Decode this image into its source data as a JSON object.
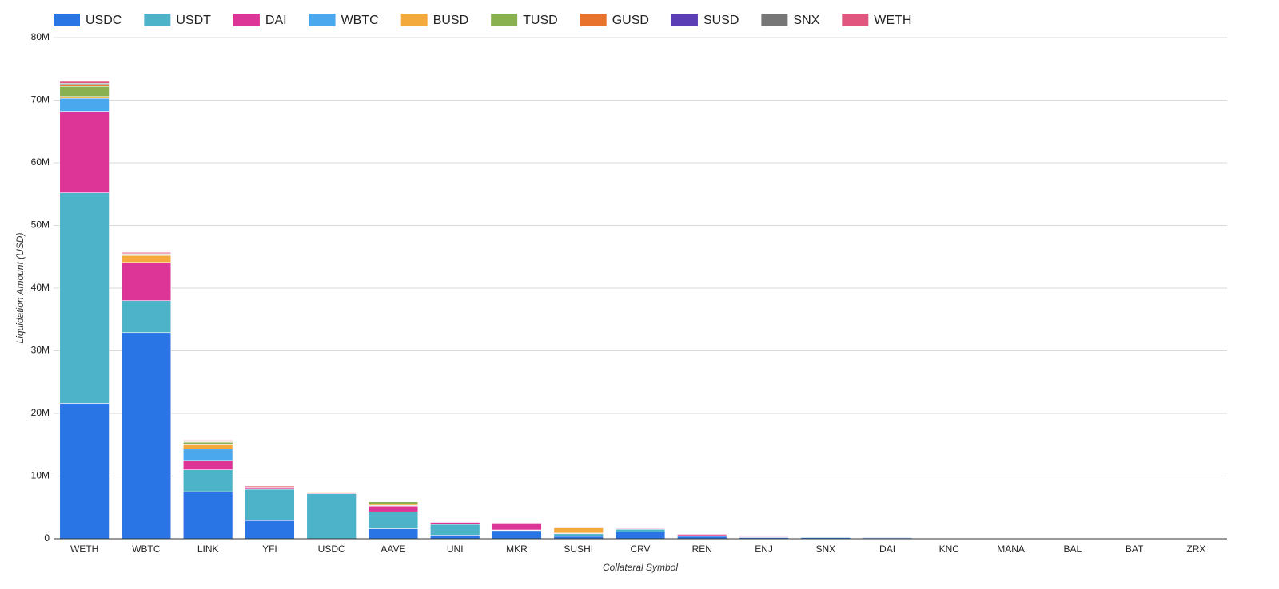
{
  "chart_data": {
    "type": "stacked_bar",
    "x_label": "Collateral Symbol",
    "y_label": "Liquidation Amount (USD)",
    "categories": [
      "WETH",
      "WBTC",
      "LINK",
      "YFI",
      "USDC",
      "AAVE",
      "UNI",
      "MKR",
      "SUSHI",
      "CRV",
      "REN",
      "ENJ",
      "SNX",
      "DAI",
      "KNC",
      "MANA",
      "BAL",
      "BAT",
      "ZRX"
    ],
    "ylim": [
      0,
      80000000
    ],
    "yticks": [
      0,
      {
        "value": 10000000,
        "label": "10M"
      },
      {
        "value": 20000000,
        "label": "20M"
      },
      {
        "value": 30000000,
        "label": "30M"
      },
      {
        "value": 40000000,
        "label": "40M"
      },
      {
        "value": 50000000,
        "label": "50M"
      },
      {
        "value": 60000000,
        "label": "60M"
      },
      {
        "value": 70000000,
        "label": "70M"
      },
      {
        "value": 80000000,
        "label": "80M"
      }
    ],
    "grid": true,
    "legend": "top",
    "series": [
      {
        "name": "USDC",
        "color": "#2a75e6",
        "values": [
          21600000,
          32900000,
          7500000,
          2900000,
          0,
          1600000,
          600000,
          1300000,
          400000,
          1100000,
          400000,
          200000,
          200000,
          150000,
          50000,
          30000,
          20000,
          10000,
          10000
        ]
      },
      {
        "name": "USDT",
        "color": "#4db3c8",
        "values": [
          33600000,
          5100000,
          3500000,
          5000000,
          7200000,
          2700000,
          1700000,
          100000,
          400000,
          400000,
          100000,
          100000,
          100000,
          100000,
          0,
          0,
          0,
          0,
          0
        ]
      },
      {
        "name": "DAI",
        "color": "#dd3497",
        "values": [
          13000000,
          6100000,
          1500000,
          300000,
          100000,
          900000,
          300000,
          1100000,
          100000,
          100000,
          200000,
          100000,
          50000,
          0,
          0,
          0,
          0,
          0,
          0
        ]
      },
      {
        "name": "WBTC",
        "color": "#4aa8ee",
        "values": [
          2100000,
          0,
          1800000,
          0,
          0,
          100000,
          0,
          0,
          0,
          0,
          0,
          0,
          0,
          0,
          0,
          0,
          0,
          0,
          0
        ]
      },
      {
        "name": "BUSD",
        "color": "#f4a93c",
        "values": [
          300000,
          1100000,
          800000,
          0,
          100000,
          200000,
          0,
          0,
          900000,
          0,
          0,
          0,
          0,
          0,
          0,
          0,
          0,
          0,
          0
        ]
      },
      {
        "name": "TUSD",
        "color": "#8ab150",
        "values": [
          1600000,
          100000,
          300000,
          0,
          0,
          400000,
          0,
          0,
          0,
          0,
          0,
          0,
          0,
          0,
          0,
          0,
          0,
          0,
          0
        ]
      },
      {
        "name": "GUSD",
        "color": "#e8732c",
        "values": [
          200000,
          100000,
          100000,
          0,
          0,
          0,
          0,
          0,
          0,
          0,
          0,
          0,
          0,
          0,
          0,
          0,
          0,
          0,
          0
        ]
      },
      {
        "name": "SUSD",
        "color": "#5b3db5",
        "values": [
          100000,
          0,
          0,
          0,
          0,
          0,
          0,
          0,
          0,
          0,
          0,
          0,
          0,
          0,
          0,
          0,
          0,
          0,
          0
        ]
      },
      {
        "name": "SNX",
        "color": "#777777",
        "values": [
          200000,
          100000,
          200000,
          0,
          0,
          0,
          0,
          0,
          0,
          0,
          0,
          0,
          0,
          0,
          0,
          0,
          0,
          0,
          0
        ]
      },
      {
        "name": "WETH",
        "color": "#e0567e",
        "values": [
          300000,
          200000,
          100000,
          200000,
          0,
          0,
          100000,
          0,
          100000,
          0,
          100000,
          100000,
          0,
          0,
          0,
          0,
          0,
          0,
          0
        ]
      }
    ]
  }
}
